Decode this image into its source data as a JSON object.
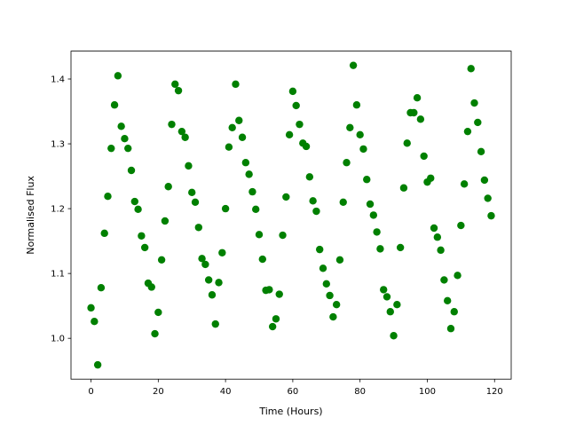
{
  "chart_data": {
    "type": "scatter",
    "xlabel": "Time (Hours)",
    "ylabel": "Normalised Flux",
    "color": "#008000",
    "x": [
      0,
      1,
      2,
      3,
      4,
      5,
      6,
      7,
      8,
      9,
      10,
      11,
      12,
      13,
      14,
      15,
      16,
      17,
      18,
      19,
      20,
      21,
      22,
      23,
      24,
      25,
      26,
      27,
      28,
      29,
      30,
      31,
      32,
      33,
      34,
      35,
      36,
      37,
      38,
      39,
      40,
      41,
      42,
      43,
      44,
      45,
      46,
      47,
      48,
      49,
      50,
      51,
      52,
      53,
      54,
      55,
      56,
      57,
      58,
      59,
      60,
      61,
      62,
      63,
      64,
      65,
      66,
      67,
      68,
      69,
      70,
      71,
      72,
      73,
      74,
      75,
      76,
      77,
      78,
      79,
      80,
      81,
      82,
      83,
      84,
      85,
      86,
      87,
      88,
      89,
      90,
      91,
      92,
      93,
      94,
      95,
      96,
      97,
      98,
      99,
      100,
      101,
      102,
      103,
      104,
      105,
      106,
      107,
      108,
      109,
      110,
      111,
      112,
      113,
      114,
      115,
      116,
      117,
      118,
      119
    ],
    "values": [
      1.047,
      1.026,
      0.959,
      1.078,
      1.162,
      1.219,
      1.293,
      1.36,
      1.405,
      1.327,
      1.308,
      1.293,
      1.259,
      1.211,
      1.199,
      1.158,
      1.14,
      1.085,
      1.079,
      1.007,
      1.04,
      1.121,
      1.181,
      1.234,
      1.33,
      1.392,
      1.382,
      1.319,
      1.31,
      1.266,
      1.225,
      1.21,
      1.171,
      1.123,
      1.114,
      1.09,
      1.067,
      1.022,
      1.086,
      1.132,
      1.2,
      1.295,
      1.325,
      1.392,
      1.336,
      1.31,
      1.271,
      1.253,
      1.226,
      1.199,
      1.16,
      1.122,
      1.074,
      1.075,
      1.018,
      1.03,
      1.068,
      1.159,
      1.218,
      1.314,
      1.381,
      1.359,
      1.33,
      1.301,
      1.296,
      1.249,
      1.212,
      1.196,
      1.137,
      1.108,
      1.084,
      1.066,
      1.033,
      1.052,
      1.121,
      1.21,
      1.271,
      1.325,
      1.421,
      1.36,
      1.314,
      1.292,
      1.245,
      1.207,
      1.19,
      1.164,
      1.138,
      1.075,
      1.064,
      1.041,
      1.004,
      1.052,
      1.14,
      1.232,
      1.301,
      1.348,
      1.348,
      1.371,
      1.338,
      1.281,
      1.241,
      1.247,
      1.17,
      1.156,
      1.136,
      1.09,
      1.058,
      1.015,
      1.041,
      1.097,
      1.174,
      1.238,
      1.319,
      1.416,
      1.363,
      1.333,
      1.288,
      1.244,
      1.216,
      1.189
    ],
    "xlim": [
      -5.95,
      124.95
    ],
    "xticks": [
      0,
      20,
      40,
      60,
      80,
      100,
      120
    ],
    "ylim": [
      0.937,
      1.443
    ],
    "yticks": [
      {
        "value": 1.0,
        "label": "1.0"
      },
      1.1,
      1.2,
      1.3,
      1.4
    ]
  }
}
